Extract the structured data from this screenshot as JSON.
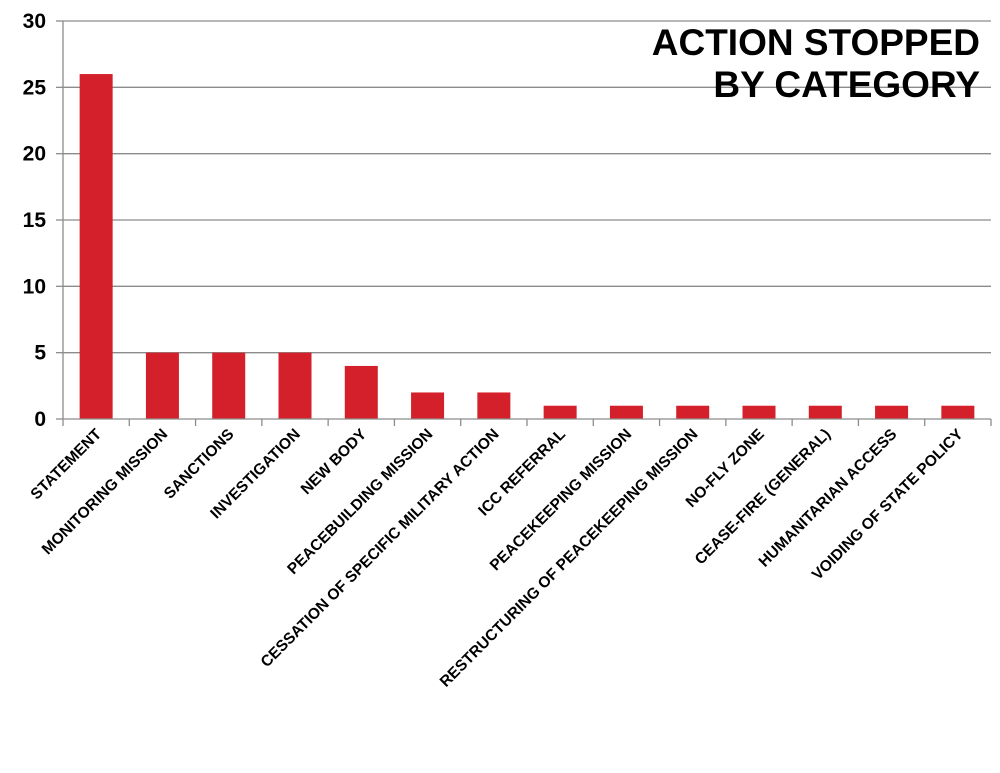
{
  "chart_data": {
    "type": "bar",
    "title_lines": [
      "ACTION STOPPED",
      "BY CATEGORY"
    ],
    "categories": [
      "STATEMENT",
      "MONITORING MISSION",
      "SANCTIONS",
      "INVESTIGATION",
      "NEW BODY",
      "PEACEBUILDING MISSION",
      "CESSATION OF SPECIFIC MILITARY ACTION",
      "ICC REFERRAL",
      "PEACEKEEPING MISSION",
      "RESTRUCTURING OF PEACEKEEPING MISSION",
      "NO-FLY ZONE",
      "CEASE-FIRE (GENERAL)",
      "HUMANITARIAN ACCESS",
      "VOIDING OF STATE POLICY"
    ],
    "values": [
      26,
      5,
      5,
      5,
      4,
      2,
      2,
      1,
      1,
      1,
      1,
      1,
      1,
      1
    ],
    "ylim": [
      0,
      30
    ],
    "yticks": [
      "0",
      "5",
      "10",
      "15",
      "20",
      "25",
      "30"
    ],
    "grid": true,
    "bar_color": "#d3202a",
    "grid_color": "#8c8c8c"
  }
}
